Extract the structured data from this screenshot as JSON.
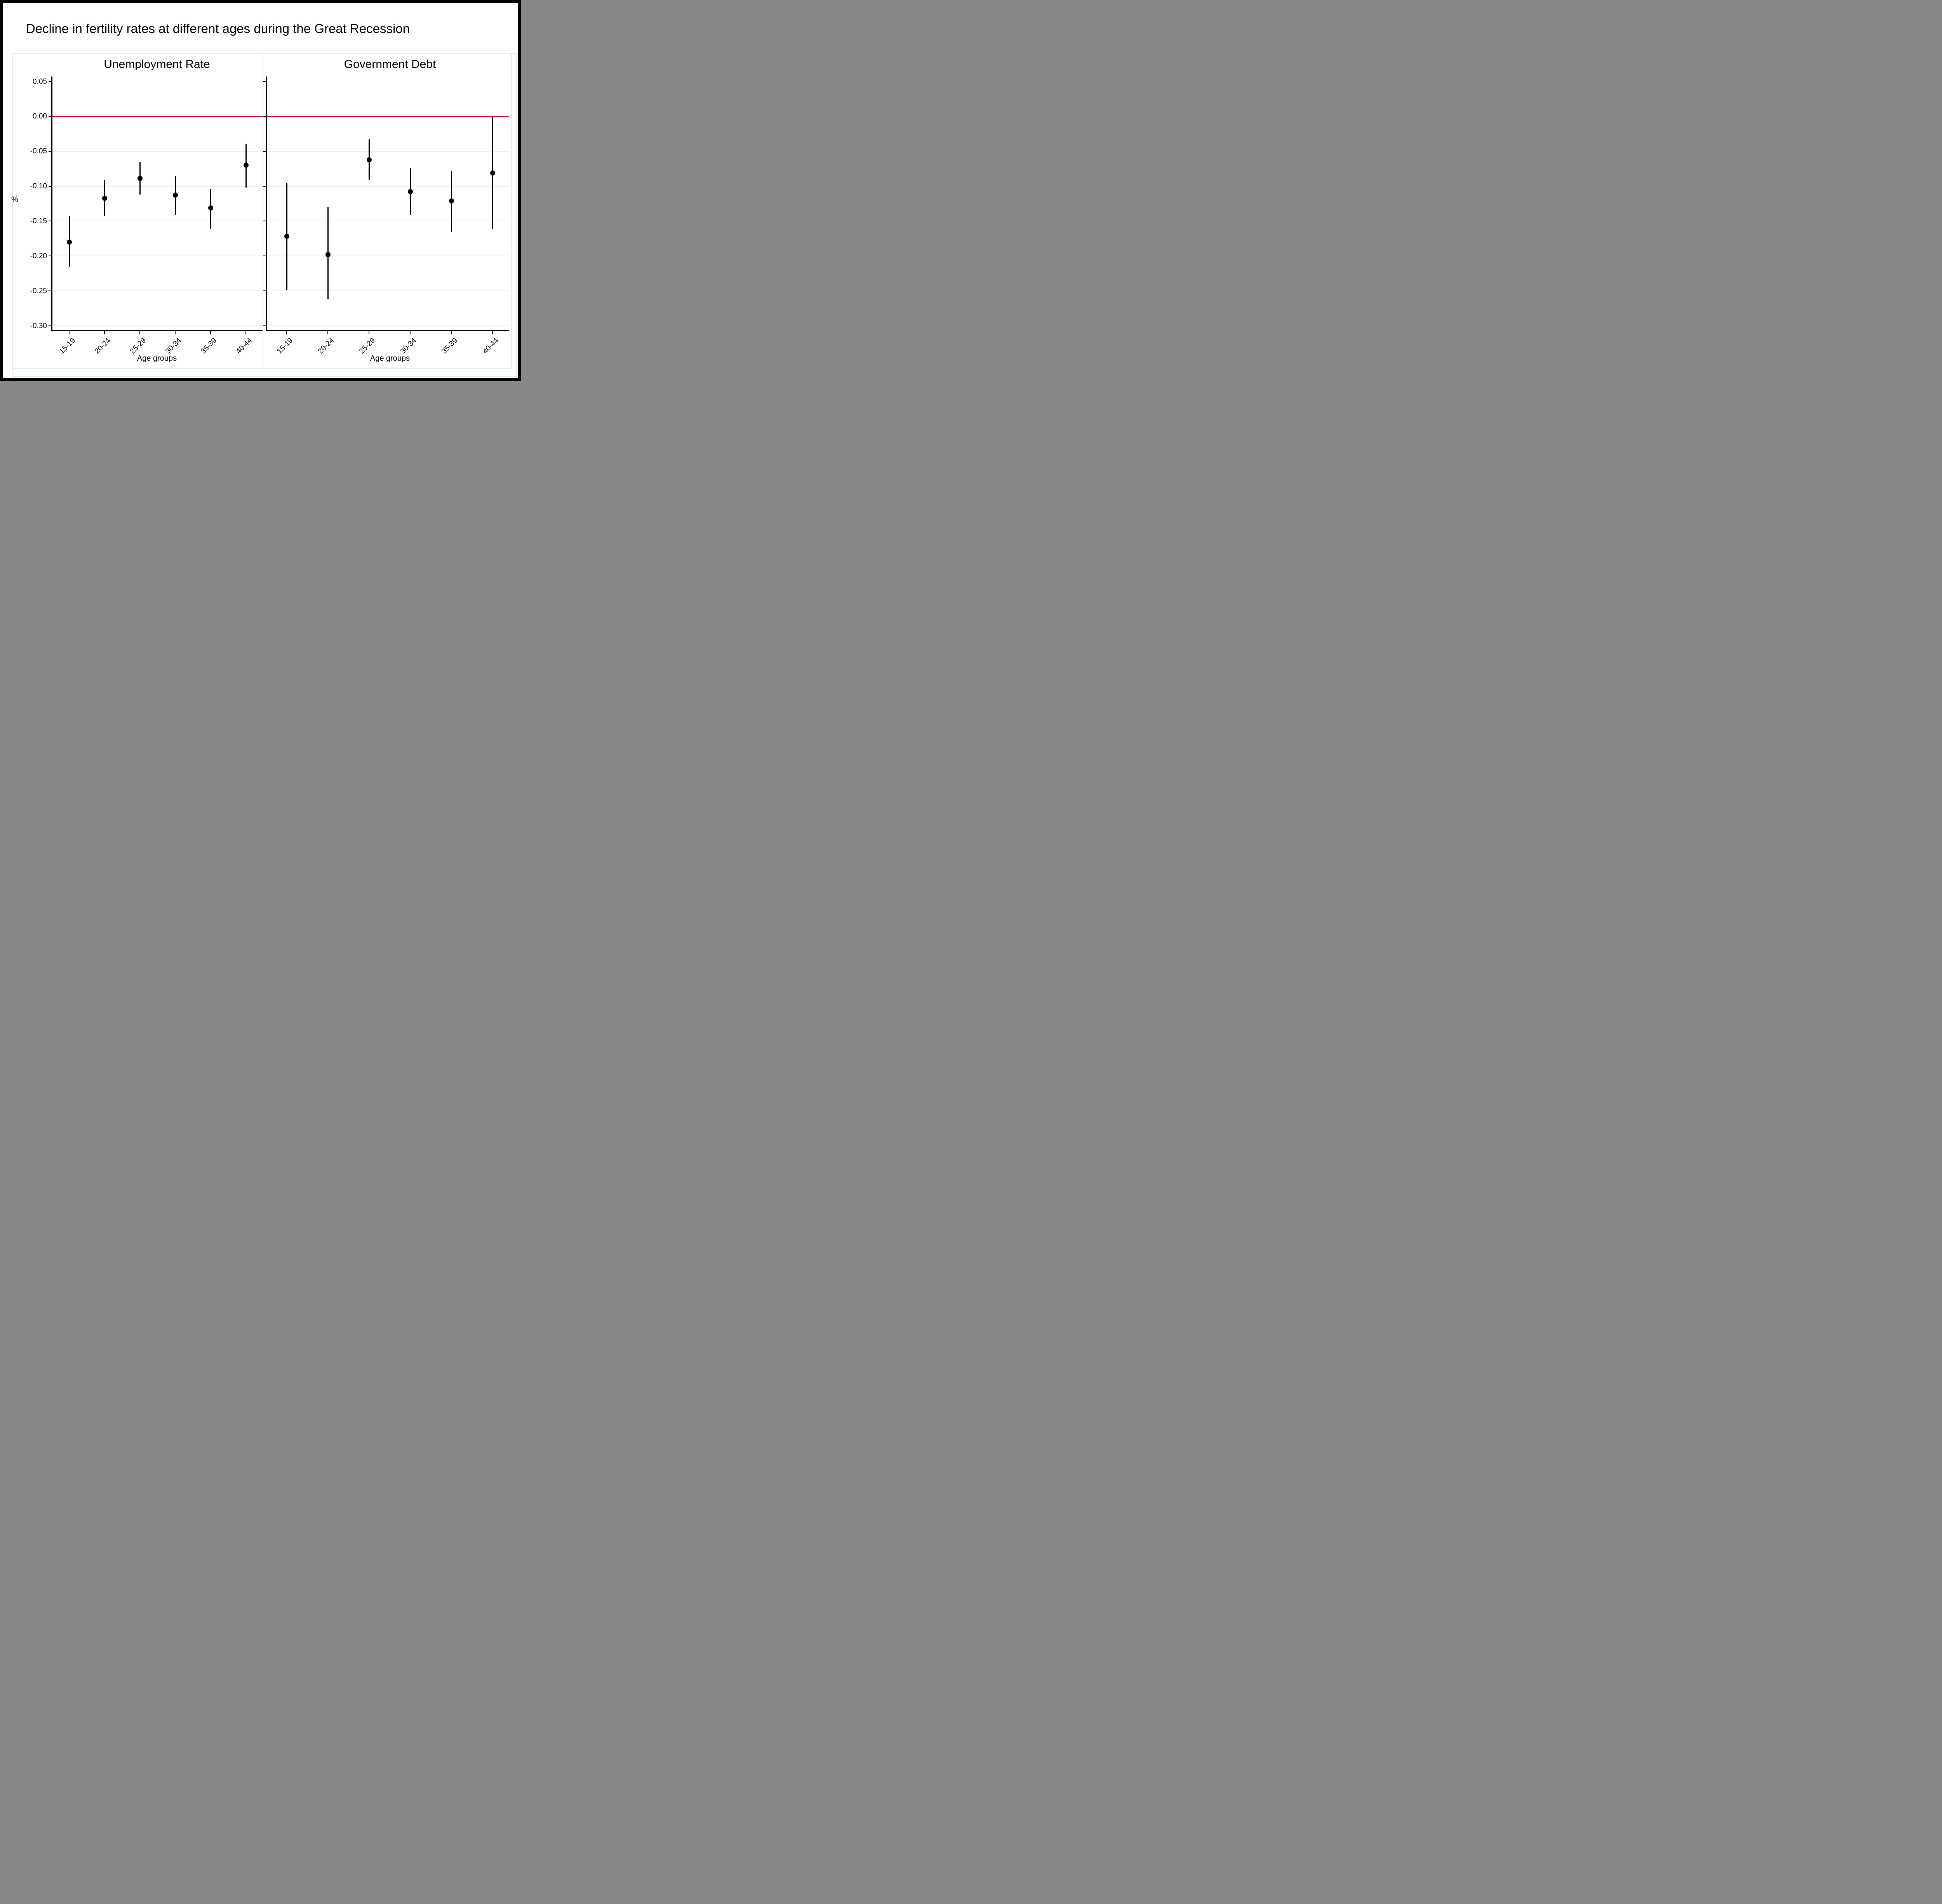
{
  "title": "Decline in fertility rates at different ages during the Great Recession",
  "colors": {
    "reference_line": "#c01038",
    "marker": "#000000",
    "grid": "#e8f0f1",
    "region_border": "#e3edee",
    "axis": "#000000",
    "text": "#000000",
    "background": "#ffffff",
    "frame": "#000000"
  },
  "chart_data": {
    "type": "scatter",
    "variant": "coefficient_plot_with_error_bars",
    "title": "Decline in fertility rates at different ages during the Great Recession",
    "ylabel": "%",
    "xlabel": "Age groups",
    "grid": true,
    "legend": "none",
    "ylim": [
      -0.306,
      0.058
    ],
    "yticks": [
      0.05,
      0.0,
      -0.05,
      -0.1,
      -0.15,
      -0.2,
      -0.25,
      -0.3
    ],
    "ytick_labels": [
      "0.05",
      "0.00",
      "-0.05",
      "-0.10",
      "-0.15",
      "-0.20",
      "-0.25",
      "-0.30"
    ],
    "gridline_values": [
      -0.05,
      -0.1,
      -0.15,
      -0.2,
      -0.25,
      -0.3
    ],
    "reference_line_y": 0,
    "categories": [
      "15-19",
      "20-24",
      "25-29",
      "30-34",
      "35-39",
      "40-44"
    ],
    "panels": [
      {
        "title": "Unemployment Rate",
        "xlabel": "Age groups",
        "estimates": [
          -0.18,
          -0.117,
          -0.089,
          -0.113,
          -0.131,
          -0.07
        ],
        "ci_upper": [
          -0.143,
          -0.091,
          -0.066,
          -0.086,
          -0.104,
          -0.039
        ],
        "ci_lower": [
          -0.216,
          -0.143,
          -0.112,
          -0.141,
          -0.161,
          -0.102
        ]
      },
      {
        "title": "Government Debt",
        "xlabel": "Age groups",
        "estimates": [
          -0.172,
          -0.198,
          -0.062,
          -0.108,
          -0.121,
          -0.081
        ],
        "ci_upper": [
          -0.096,
          -0.13,
          -0.033,
          -0.074,
          -0.078,
          -0.001
        ],
        "ci_lower": [
          -0.248,
          -0.262,
          -0.091,
          -0.141,
          -0.166,
          -0.161
        ]
      }
    ]
  }
}
